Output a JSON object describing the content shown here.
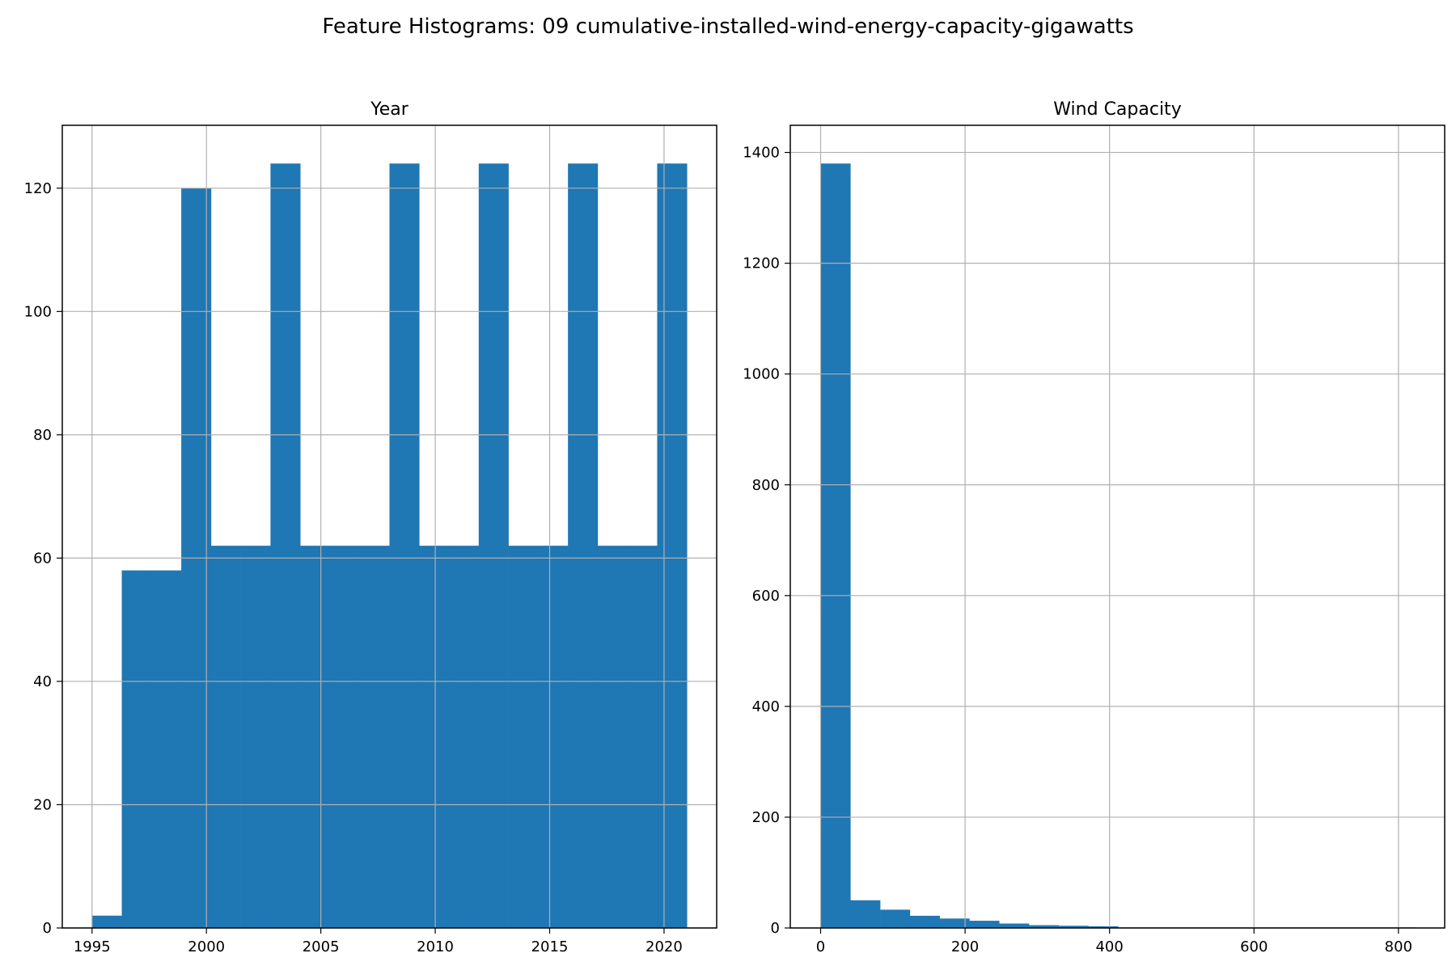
{
  "figure": {
    "title": "Feature Histograms: 09 cumulative-installed-wind-energy-capacity-gigawatts"
  },
  "colors": {
    "bar": "#1f77b4",
    "grid": "#b0b0b0",
    "axis": "#000000"
  },
  "chart_data": [
    {
      "type": "bar",
      "title": "Year",
      "xlabel": "",
      "ylabel": "",
      "grid": true,
      "xlim": [
        1993.7,
        2022.3
      ],
      "ylim": [
        0,
        130.2
      ],
      "xticks": [
        1995,
        2000,
        2005,
        2010,
        2015,
        2020
      ],
      "yticks": [
        0,
        20,
        40,
        60,
        80,
        100,
        120
      ],
      "bins": [
        {
          "x0": 1995.0,
          "x1": 1996.3,
          "count": 2
        },
        {
          "x0": 1996.3,
          "x1": 1997.6,
          "count": 58
        },
        {
          "x0": 1997.6,
          "x1": 1998.9,
          "count": 58
        },
        {
          "x0": 1998.9,
          "x1": 2000.2,
          "count": 120
        },
        {
          "x0": 2000.2,
          "x1": 2001.5,
          "count": 62
        },
        {
          "x0": 2001.5,
          "x1": 2002.8,
          "count": 62
        },
        {
          "x0": 2002.8,
          "x1": 2004.1,
          "count": 124
        },
        {
          "x0": 2004.1,
          "x1": 2005.4,
          "count": 62
        },
        {
          "x0": 2005.4,
          "x1": 2006.7,
          "count": 62
        },
        {
          "x0": 2006.7,
          "x1": 2008.0,
          "count": 62
        },
        {
          "x0": 2008.0,
          "x1": 2009.3,
          "count": 124
        },
        {
          "x0": 2009.3,
          "x1": 2010.6,
          "count": 62
        },
        {
          "x0": 2010.6,
          "x1": 2011.9,
          "count": 62
        },
        {
          "x0": 2011.9,
          "x1": 2013.2,
          "count": 124
        },
        {
          "x0": 2013.2,
          "x1": 2014.5,
          "count": 62
        },
        {
          "x0": 2014.5,
          "x1": 2015.8,
          "count": 62
        },
        {
          "x0": 2015.8,
          "x1": 2017.1,
          "count": 124
        },
        {
          "x0": 2017.1,
          "x1": 2018.4,
          "count": 62
        },
        {
          "x0": 2018.4,
          "x1": 2019.7,
          "count": 62
        },
        {
          "x0": 2019.7,
          "x1": 2021.0,
          "count": 124
        }
      ]
    },
    {
      "type": "bar",
      "title": "Wind Capacity",
      "xlabel": "",
      "ylabel": "",
      "grid": true,
      "xlim": [
        -42,
        864
      ],
      "ylim": [
        0,
        1449
      ],
      "xticks": [
        0,
        200,
        400,
        600,
        800
      ],
      "yticks": [
        0,
        200,
        400,
        600,
        800,
        1000,
        1200,
        1400
      ],
      "bins": [
        {
          "x0": 0,
          "x1": 41.2,
          "count": 1380
        },
        {
          "x0": 41.2,
          "x1": 82.4,
          "count": 50
        },
        {
          "x0": 82.4,
          "x1": 123.6,
          "count": 33
        },
        {
          "x0": 123.6,
          "x1": 164.8,
          "count": 22
        },
        {
          "x0": 164.8,
          "x1": 206.0,
          "count": 17
        },
        {
          "x0": 206.0,
          "x1": 247.2,
          "count": 13
        },
        {
          "x0": 247.2,
          "x1": 288.4,
          "count": 8
        },
        {
          "x0": 288.4,
          "x1": 329.6,
          "count": 5
        },
        {
          "x0": 329.6,
          "x1": 370.8,
          "count": 4
        },
        {
          "x0": 370.8,
          "x1": 412.0,
          "count": 3
        },
        {
          "x0": 412.0,
          "x1": 453.2,
          "count": 1
        },
        {
          "x0": 453.2,
          "x1": 494.4,
          "count": 1
        },
        {
          "x0": 494.4,
          "x1": 535.6,
          "count": 1
        },
        {
          "x0": 535.6,
          "x1": 576.8,
          "count": 1
        },
        {
          "x0": 576.8,
          "x1": 618.0,
          "count": 1
        },
        {
          "x0": 618.0,
          "x1": 659.2,
          "count": 1
        },
        {
          "x0": 659.2,
          "x1": 700.4,
          "count": 1
        },
        {
          "x0": 700.4,
          "x1": 741.6,
          "count": 1
        },
        {
          "x0": 741.6,
          "x1": 782.8,
          "count": 1
        },
        {
          "x0": 782.8,
          "x1": 824.0,
          "count": 1
        }
      ]
    }
  ]
}
